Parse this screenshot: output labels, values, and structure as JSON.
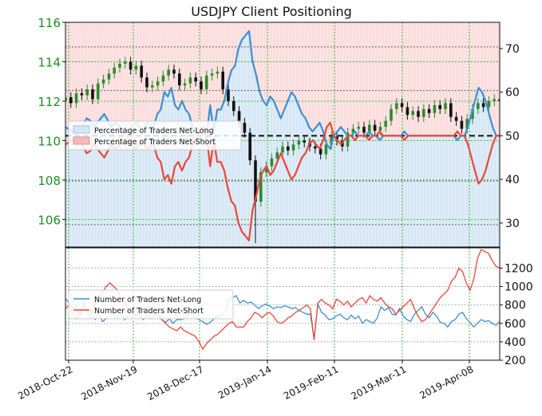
{
  "title": "USDJPY Client Positioning",
  "colors": {
    "net_long_line": "#3d8fd1",
    "net_short_line": "#e8483a",
    "long_fill": "#d6e6f5",
    "short_fill": "#fbdcdc",
    "candle_up": "#2e8b2e",
    "candle_down": "#111111",
    "grid_green": "#00aa00",
    "grid_gray": "#999999",
    "left_tick_color": "#228b22"
  },
  "chart_data": [
    {
      "type": "line",
      "title": "USDJPY Client Positioning",
      "x_ticks": [
        "2018-Oct-22",
        "2018-Nov-19",
        "2018-Dec-17",
        "2019-Jan-14",
        "2019-Feb-11",
        "2019-Mar-11",
        "2019-Apr-08"
      ],
      "price_axis": {
        "ticks": [
          106,
          108,
          110,
          112,
          114,
          116
        ],
        "ylim": [
          104.6,
          116
        ]
      },
      "percent_axis": {
        "ticks": [
          30,
          40,
          50,
          60,
          70
        ],
        "ylim": [
          24.5,
          76
        ]
      },
      "reference_line_percent": 50,
      "legend": {
        "placement": "upper-left",
        "entries": [
          "Percentage of Traders Net-Long",
          "Percentage of Traders Net-Short"
        ]
      },
      "series": [
        {
          "name": "Percentage of Traders Net-Long",
          "values": [
            52,
            51.5,
            51,
            50.5,
            51,
            52.5,
            54,
            53.5,
            52,
            53,
            54,
            55,
            53.5,
            52,
            53,
            52.5,
            51,
            52,
            51,
            52.5,
            53,
            52,
            51.5,
            53,
            52.5,
            52,
            55,
            56,
            60,
            59,
            61,
            57,
            56,
            58,
            56,
            55,
            52,
            51,
            49,
            48,
            50,
            57,
            51,
            56,
            56,
            58,
            62,
            65,
            66,
            70,
            72,
            73,
            74,
            67,
            64,
            60,
            58,
            57,
            59,
            58,
            56,
            54,
            56,
            58,
            60,
            59,
            57,
            55,
            54,
            52,
            51,
            52,
            53,
            51,
            48,
            47,
            50,
            51,
            52,
            51,
            50,
            50,
            51,
            50,
            50,
            50,
            51,
            50,
            50,
            49,
            50,
            50,
            50,
            50,
            50,
            50,
            51,
            50,
            50,
            50,
            50,
            50,
            50,
            50,
            50,
            50,
            50,
            50,
            50,
            50,
            50,
            49,
            50,
            50,
            52,
            55,
            58,
            61,
            60,
            58,
            55,
            52,
            50,
            50
          ]
        },
        {
          "name": "Percentage of Traders Net-Short",
          "values": [
            48,
            48.5,
            49,
            49.5,
            49,
            47.5,
            46,
            46.5,
            48,
            47,
            46,
            45,
            46.5,
            48,
            47,
            47.5,
            49,
            48,
            49,
            47.5,
            47,
            48,
            48.5,
            47,
            47.5,
            48,
            45,
            44,
            40,
            41,
            39,
            43,
            44,
            42,
            44,
            45,
            48,
            49,
            51,
            52,
            50,
            43,
            49,
            44,
            44,
            42,
            38,
            35,
            34,
            30,
            28,
            27,
            26,
            33,
            36,
            40,
            42,
            43,
            41,
            42,
            44,
            46,
            44,
            42,
            40,
            41,
            43,
            45,
            46,
            48,
            49,
            48,
            47,
            49,
            52,
            53,
            50,
            49,
            48,
            49,
            50,
            50,
            49,
            50,
            50,
            50,
            49,
            50,
            50,
            51,
            50,
            50,
            50,
            50,
            50,
            50,
            49,
            50,
            50,
            50,
            50,
            50,
            50,
            50,
            50,
            50,
            50,
            50,
            50,
            50,
            50,
            51,
            50,
            50,
            48,
            45,
            42,
            39,
            40,
            42,
            45,
            48,
            50,
            50
          ]
        },
        {
          "name": "USDJPY price",
          "values": [
            112.2,
            111.9,
            112.4,
            112.3,
            112.6,
            112.1,
            112.9,
            113.1,
            113.4,
            113.7,
            113.9,
            114.0,
            113.6,
            113.8,
            113.2,
            112.7,
            112.8,
            113.0,
            113.3,
            113.6,
            113.4,
            112.8,
            112.9,
            113.2,
            113.0,
            112.6,
            113.3,
            113.4,
            113.5,
            112.6,
            112.0,
            111.5,
            110.9,
            110.4,
            109.0,
            106.9,
            108.4,
            108.7,
            109.1,
            109.4,
            109.7,
            109.5,
            109.8,
            110.0,
            109.9,
            109.7,
            109.6,
            109.3,
            109.8,
            110.2,
            110.0,
            109.7,
            110.4,
            110.6,
            110.7,
            110.4,
            110.8,
            110.5,
            110.7,
            111.0,
            111.6,
            111.9,
            111.7,
            111.3,
            111.5,
            111.2,
            111.6,
            111.4,
            111.8,
            111.6,
            111.9,
            111.2,
            111.0,
            110.6,
            111.1,
            111.6,
            111.9,
            111.7,
            112.0,
            112.1,
            112.0
          ]
        }
      ]
    },
    {
      "type": "line",
      "y_ticks": [
        200,
        400,
        600,
        800,
        1000,
        1200
      ],
      "ylim": [
        200,
        1420
      ],
      "legend": {
        "placement": "upper-left",
        "entries": [
          "Number of Traders Net-Long",
          "Number of Traders Net-Short"
        ]
      },
      "series": [
        {
          "name": "Number of Traders Net-Long",
          "values": [
            870,
            820,
            760,
            800,
            690,
            760,
            720,
            680,
            640,
            700,
            620,
            650,
            680,
            710,
            660,
            700,
            640,
            690,
            660,
            720,
            680,
            640,
            700,
            650,
            690,
            720,
            640,
            610,
            650,
            600,
            640,
            640,
            650,
            700,
            720,
            660,
            640,
            620,
            590,
            610,
            650,
            680,
            690,
            720,
            860,
            880,
            900,
            820,
            850,
            820,
            830,
            800,
            760,
            790,
            810,
            790,
            760,
            780,
            770,
            790,
            780,
            760,
            770,
            740,
            720,
            700,
            700,
            430,
            810,
            720,
            690,
            640,
            650,
            680,
            700,
            660,
            640,
            690,
            650,
            680,
            600,
            640,
            620,
            600,
            660,
            780,
            740,
            770,
            700,
            690,
            760,
            680,
            640,
            620,
            700,
            740,
            780,
            700,
            660,
            720,
            680,
            610,
            600,
            560,
            620,
            640,
            700,
            720,
            650,
            610,
            560,
            600,
            640,
            620,
            630,
            600,
            580,
            620
          ]
        },
        {
          "name": "Number of Traders Net-Short",
          "values": [
            760,
            800,
            700,
            650,
            720,
            820,
            740,
            720,
            820,
            900,
            940,
            1000,
            1040,
            1000,
            960,
            880,
            820,
            760,
            720,
            680,
            700,
            740,
            780,
            720,
            700,
            680,
            640,
            600,
            560,
            540,
            520,
            560,
            520,
            500,
            480,
            460,
            400,
            320,
            380,
            420,
            460,
            480,
            520,
            560,
            600,
            620,
            560,
            560,
            560,
            620,
            660,
            720,
            700,
            660,
            700,
            720,
            680,
            620,
            600,
            620,
            660,
            680,
            720,
            740,
            770,
            800,
            760,
            420,
            820,
            860,
            820,
            800,
            760,
            860,
            840,
            800,
            840,
            780,
            820,
            860,
            880,
            820,
            900,
            860,
            840,
            880,
            820,
            780,
            760,
            700,
            740,
            780,
            820,
            860,
            760,
            680,
            620,
            640,
            700,
            760,
            820,
            880,
            920,
            960,
            1060,
            1100,
            1200,
            1160,
            1040,
            960,
            1080,
            1300,
            1400,
            1380,
            1360,
            1280,
            1220,
            1200
          ]
        }
      ]
    }
  ]
}
